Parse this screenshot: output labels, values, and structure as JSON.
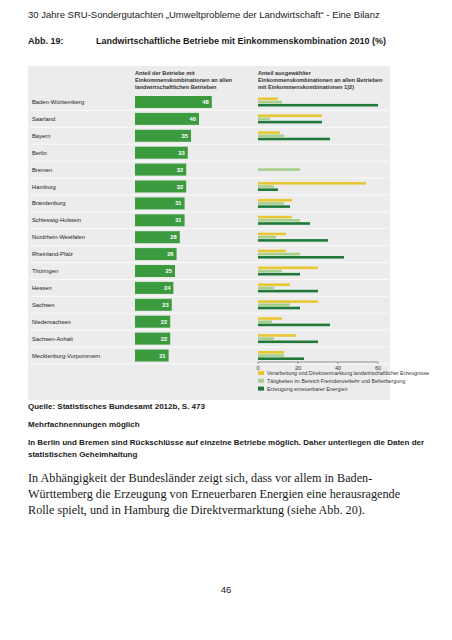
{
  "header": {
    "title": "30 Jahre SRU-Sondergutachten „Umweltprobleme der Landwirtschaft“ - Eine Bilanz"
  },
  "figure": {
    "label": "Abb. 19:",
    "title": "Landwirtschaftliche Betriebe mit Einkommenskombination 2010 (%)"
  },
  "chart_data": [
    {
      "type": "bar",
      "orientation": "horizontal",
      "title": "Anteil der Betriebe mit Einkommenskombinationen an allen landwirtschaftlichen Betrieben",
      "categories": [
        "Baden-Württemberg",
        "Saarland",
        "Bayern",
        "Berlin",
        "Bremen",
        "Hamburg",
        "Brandenburg",
        "Schleswig-Holstein",
        "Nordrhein-Westfalen",
        "Rheinland-Pfalz",
        "Thüringen",
        "Hessen",
        "Sachsen",
        "Niedersachsen",
        "Sachsen-Anhalt",
        "Mecklenburg-Vorpommern"
      ],
      "values": [
        48,
        40,
        35,
        33,
        32,
        32,
        31,
        31,
        28,
        26,
        25,
        24,
        23,
        22,
        22,
        21
      ],
      "color": "#3d9b3f",
      "xlim": [
        0,
        50
      ],
      "data_labels": true,
      "tick_labels": "y"
    },
    {
      "type": "bar",
      "orientation": "horizontal",
      "title": "Anteil ausgewählter Einkommenskombinationen an allen Betrieben mit Einkommenskombinationen 1)2)",
      "series": [
        {
          "name": "Verarbeitung und Direktvermarktung landwirtschaftlicher Erzeugnisse",
          "color": "#e8c832",
          "values": [
            10,
            32,
            11,
            null,
            null,
            54,
            17,
            17,
            14,
            14,
            30,
            16,
            30,
            12,
            19,
            13
          ]
        },
        {
          "name": "Tätigkeiten im Bereich Fremdenverkehr und Beherbergung",
          "color": "#a8d08d",
          "values": [
            12,
            6,
            13,
            null,
            21,
            8,
            13,
            21,
            9,
            21,
            12,
            8,
            16,
            7,
            8,
            13
          ]
        },
        {
          "name": "Erzeugung erneuerbarer Energien",
          "color": "#1f7a3a",
          "values": [
            60,
            32,
            36,
            null,
            null,
            10,
            16,
            26,
            35,
            43,
            21,
            30,
            21,
            36,
            30,
            23
          ]
        }
      ],
      "xlim": [
        0,
        60
      ],
      "xticks": [
        0,
        20,
        40,
        60
      ],
      "grid": false,
      "legend": "bottom",
      "tick_labels": "x"
    }
  ],
  "notes": {
    "source": "Quelle: Statistisches Bundesamt 2012b, S. 473",
    "items": [
      "Mehrfachnennungen möglich",
      "In Berlin und Bremen sind Rückschlüsse auf einzelne Betriebe möglich. Daher unterliegen die Daten der statistischen Geheimhaltung"
    ]
  },
  "body": "In Abhängigkeit der Bundesländer zeigt sich, dass vor allem in Baden-Württemberg die Erzeugung von Erneuerbaren Energien eine herausragende Rolle spielt, und in Hamburg die Direktvermarktung (siehe Abb. 20).",
  "page_number": "46"
}
